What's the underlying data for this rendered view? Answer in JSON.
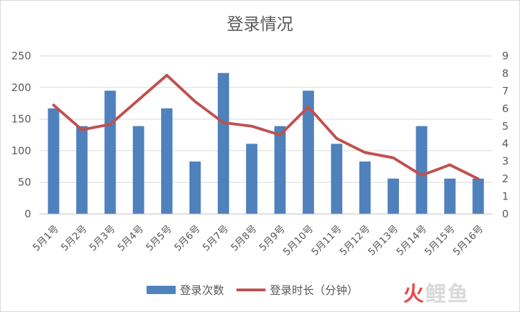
{
  "chart_data": {
    "type": "bar",
    "title": "登录情况",
    "categories": [
      "5月1号",
      "5月2号",
      "5月3号",
      "5月4号",
      "5月5号",
      "5月6号",
      "5月7号",
      "5月8号",
      "5月9号",
      "5月10号",
      "5月11号",
      "5月12号",
      "5月13号",
      "5月14号",
      "5月15号",
      "5月16号"
    ],
    "series": [
      {
        "name": "登录次数",
        "type": "bar",
        "axis": "left",
        "color": "#4f81bd",
        "values": [
          167,
          139,
          195,
          139,
          167,
          83,
          223,
          111,
          139,
          195,
          111,
          83,
          56,
          139,
          56,
          56
        ]
      },
      {
        "name": "登录时长（分钟）",
        "type": "line",
        "axis": "right",
        "color": "#c0504d",
        "values": [
          6.2,
          4.8,
          5.1,
          6.5,
          7.9,
          6.4,
          5.2,
          5.0,
          4.5,
          6.1,
          4.3,
          3.5,
          3.2,
          2.2,
          2.8,
          2.0
        ]
      }
    ],
    "y_left": {
      "min": 0,
      "max": 250,
      "ticks": [
        0,
        50,
        100,
        150,
        200,
        250
      ]
    },
    "y_right": {
      "min": 0,
      "max": 9,
      "ticks": [
        0,
        1,
        2,
        3,
        4,
        5,
        6,
        7,
        8,
        9
      ]
    },
    "grid": true,
    "legend_position": "bottom"
  },
  "watermark": {
    "first": "火",
    "rest": "鲤鱼"
  }
}
